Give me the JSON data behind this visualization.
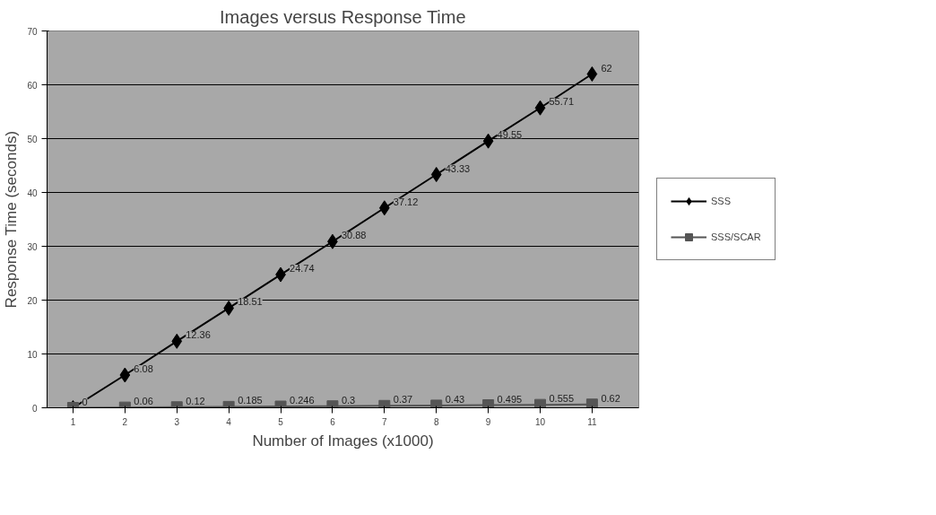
{
  "chart_data": {
    "type": "line",
    "title": "Images versus Response Time",
    "xlabel": "Number of Images (x1000)",
    "ylabel": "Response Time (seconds)",
    "categories": [
      "1",
      "2",
      "3",
      "4",
      "5",
      "6",
      "7",
      "8",
      "9",
      "10",
      "11"
    ],
    "series": [
      {
        "name": "SSS",
        "color": "#000000",
        "marker": "diamond",
        "values": [
          0,
          6.08,
          12.36,
          18.51,
          24.74,
          30.88,
          37.12,
          43.33,
          49.55,
          55.71,
          62
        ],
        "value_labels": [
          null,
          "6.08",
          "12.36",
          "18.51",
          "24.74",
          "30.88",
          "37.12",
          "43.33",
          "49.55",
          "55.71",
          "62"
        ]
      },
      {
        "name": "SSS/SCAR",
        "color": "#555555",
        "marker": "square",
        "values": [
          0,
          0.06,
          0.12,
          0.185,
          0.246,
          0.3,
          0.37,
          0.43,
          0.495,
          0.555,
          0.62
        ],
        "value_labels": [
          "0",
          "0.06",
          "0.12",
          "0.185",
          "0.246",
          "0.3",
          "0.37",
          "0.43",
          "0.495",
          "0.555",
          "0.62"
        ]
      }
    ],
    "ylim": [
      0,
      70
    ],
    "yticks": [
      0,
      10,
      20,
      30,
      40,
      50,
      60,
      70
    ],
    "grid": "y",
    "legend": "right",
    "line_style": "solid"
  }
}
